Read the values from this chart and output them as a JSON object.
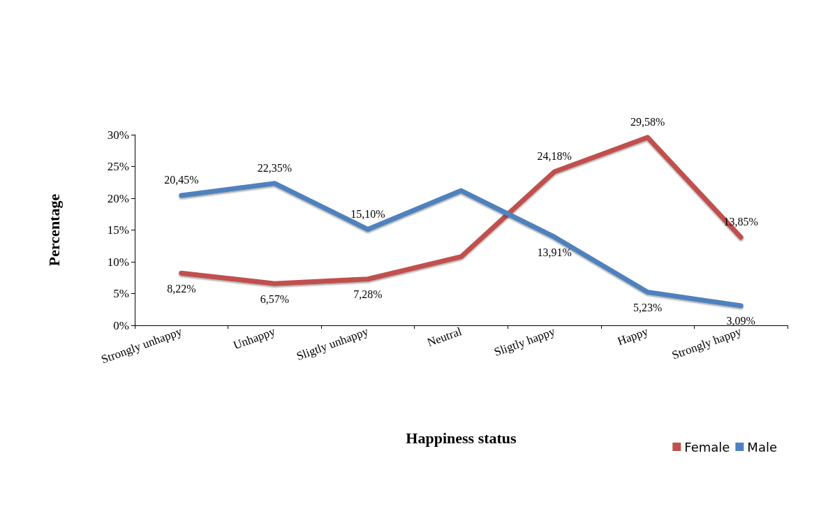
{
  "chart_data": {
    "type": "line",
    "xlabel": "Happiness status",
    "ylabel": "Percentage",
    "categories": [
      "Strongly unhappy",
      "Unhappy",
      "Sligtly unhappy",
      "Neutral",
      "Sligtly happy",
      "Happy",
      "Strongly happy"
    ],
    "series": [
      {
        "name": "Female",
        "color": "#c0504d",
        "values": [
          8.22,
          6.57,
          7.28,
          10.8,
          24.18,
          29.58,
          13.85
        ],
        "value_labels": [
          "8,22%",
          "6,57%",
          "7,28%",
          null,
          "24,18%",
          "29,58%",
          "13,85%"
        ]
      },
      {
        "name": "Male",
        "color": "#4f81bd",
        "values": [
          20.45,
          22.35,
          15.1,
          21.2,
          13.91,
          5.23,
          3.09
        ],
        "value_labels": [
          "20,45%",
          "22,35%",
          "15,10%",
          null,
          "13,91%",
          "5,23%",
          "3,09%"
        ]
      }
    ],
    "ylim": [
      0,
      30
    ],
    "yticks": [
      {
        "value": 0,
        "label": "0%"
      },
      {
        "value": 5,
        "label": "5%"
      },
      {
        "value": 10,
        "label": "10%"
      },
      {
        "value": 15,
        "label": "15%"
      },
      {
        "value": 20,
        "label": "20%"
      },
      {
        "value": 25,
        "label": "25%"
      },
      {
        "value": 30,
        "label": "30%"
      }
    ],
    "grid": false,
    "legend": "bottom right",
    "marker": "none",
    "line_style": "solid"
  }
}
